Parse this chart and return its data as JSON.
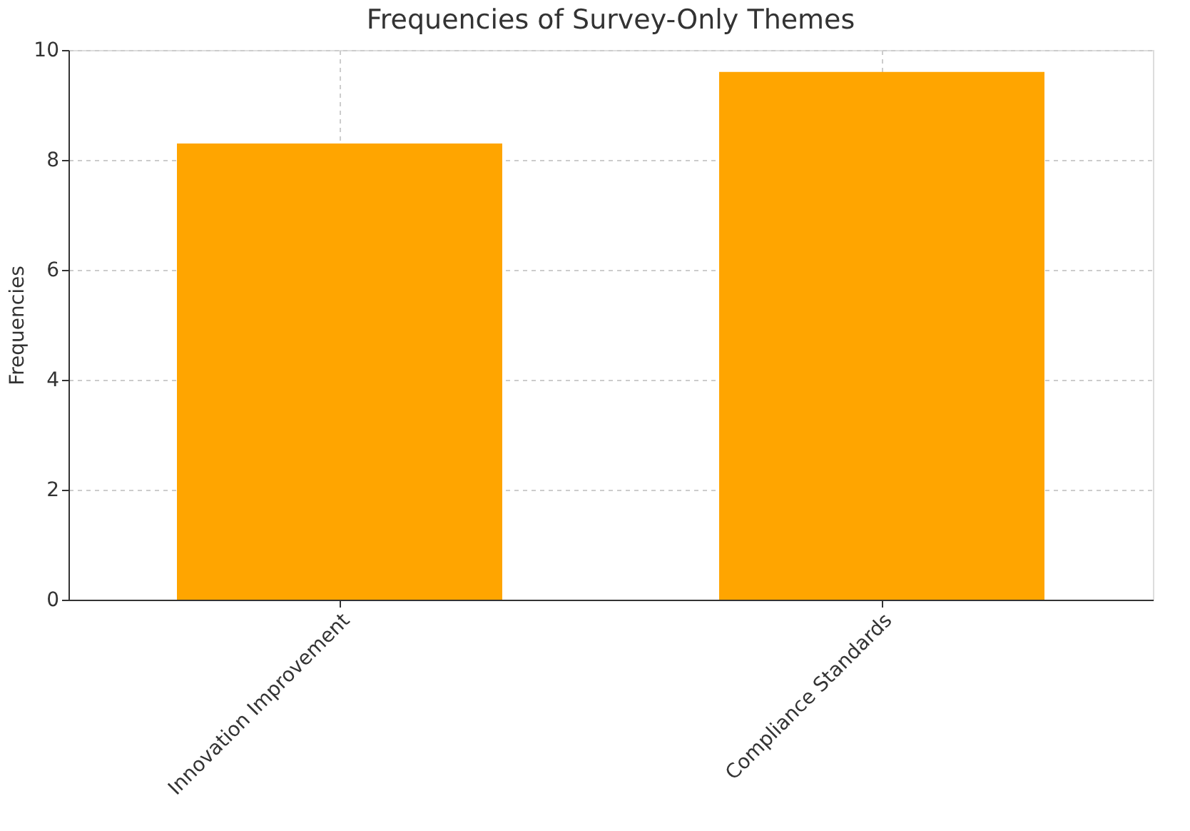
{
  "chart_data": {
    "type": "bar",
    "title": "Frequencies of Survey-Only Themes",
    "ylabel": "Frequencies",
    "categories": [
      "Innovation Improvement",
      "Compliance Standards"
    ],
    "values": [
      8.3,
      9.6
    ],
    "color": "#ffa500",
    "ylim": [
      0,
      10
    ],
    "yticks": [
      0,
      2,
      4,
      6,
      8,
      10
    ],
    "grid": true
  }
}
